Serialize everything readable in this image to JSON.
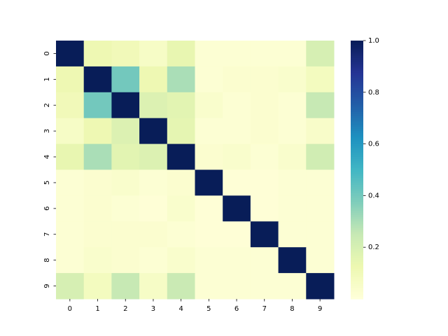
{
  "chart_data": {
    "type": "heatmap",
    "x_labels": [
      "0",
      "1",
      "2",
      "3",
      "4",
      "5",
      "6",
      "7",
      "8",
      "9"
    ],
    "y_labels": [
      "0",
      "1",
      "2",
      "3",
      "4",
      "5",
      "6",
      "7",
      "8",
      "9"
    ],
    "values": [
      [
        1.0,
        0.12,
        0.1,
        0.06,
        0.14,
        0.02,
        0.02,
        0.02,
        0.02,
        0.2
      ],
      [
        0.12,
        1.0,
        0.4,
        0.12,
        0.3,
        0.02,
        0.03,
        0.03,
        0.04,
        0.08
      ],
      [
        0.1,
        0.4,
        1.0,
        0.18,
        0.16,
        0.04,
        0.02,
        0.03,
        0.02,
        0.25
      ],
      [
        0.06,
        0.12,
        0.18,
        1.0,
        0.15,
        0.02,
        0.02,
        0.03,
        0.02,
        0.05
      ],
      [
        0.14,
        0.3,
        0.16,
        0.18,
        1.0,
        0.03,
        0.04,
        0.02,
        0.04,
        0.22
      ],
      [
        0.02,
        0.03,
        0.04,
        0.02,
        0.03,
        1.0,
        0.01,
        0.01,
        0.02,
        0.02
      ],
      [
        0.02,
        0.03,
        0.02,
        0.01,
        0.04,
        0.01,
        1.0,
        0.01,
        0.02,
        0.02
      ],
      [
        0.02,
        0.03,
        0.03,
        0.03,
        0.02,
        0.01,
        0.01,
        1.0,
        0.02,
        0.02
      ],
      [
        0.02,
        0.04,
        0.03,
        0.02,
        0.04,
        0.02,
        0.02,
        0.02,
        1.0,
        0.02
      ],
      [
        0.2,
        0.08,
        0.25,
        0.06,
        0.24,
        0.02,
        0.02,
        0.02,
        0.02,
        1.0
      ]
    ],
    "colormap": "YlGnBu",
    "colorbar": {
      "min": 0.0,
      "max": 1.0,
      "ticks": [
        1.0,
        0.8,
        0.6,
        0.4,
        0.2
      ],
      "tick_labels": [
        "1.0",
        "0.8",
        "0.6",
        "0.4",
        "0.2"
      ]
    },
    "title": "",
    "xlabel": "",
    "ylabel": ""
  }
}
